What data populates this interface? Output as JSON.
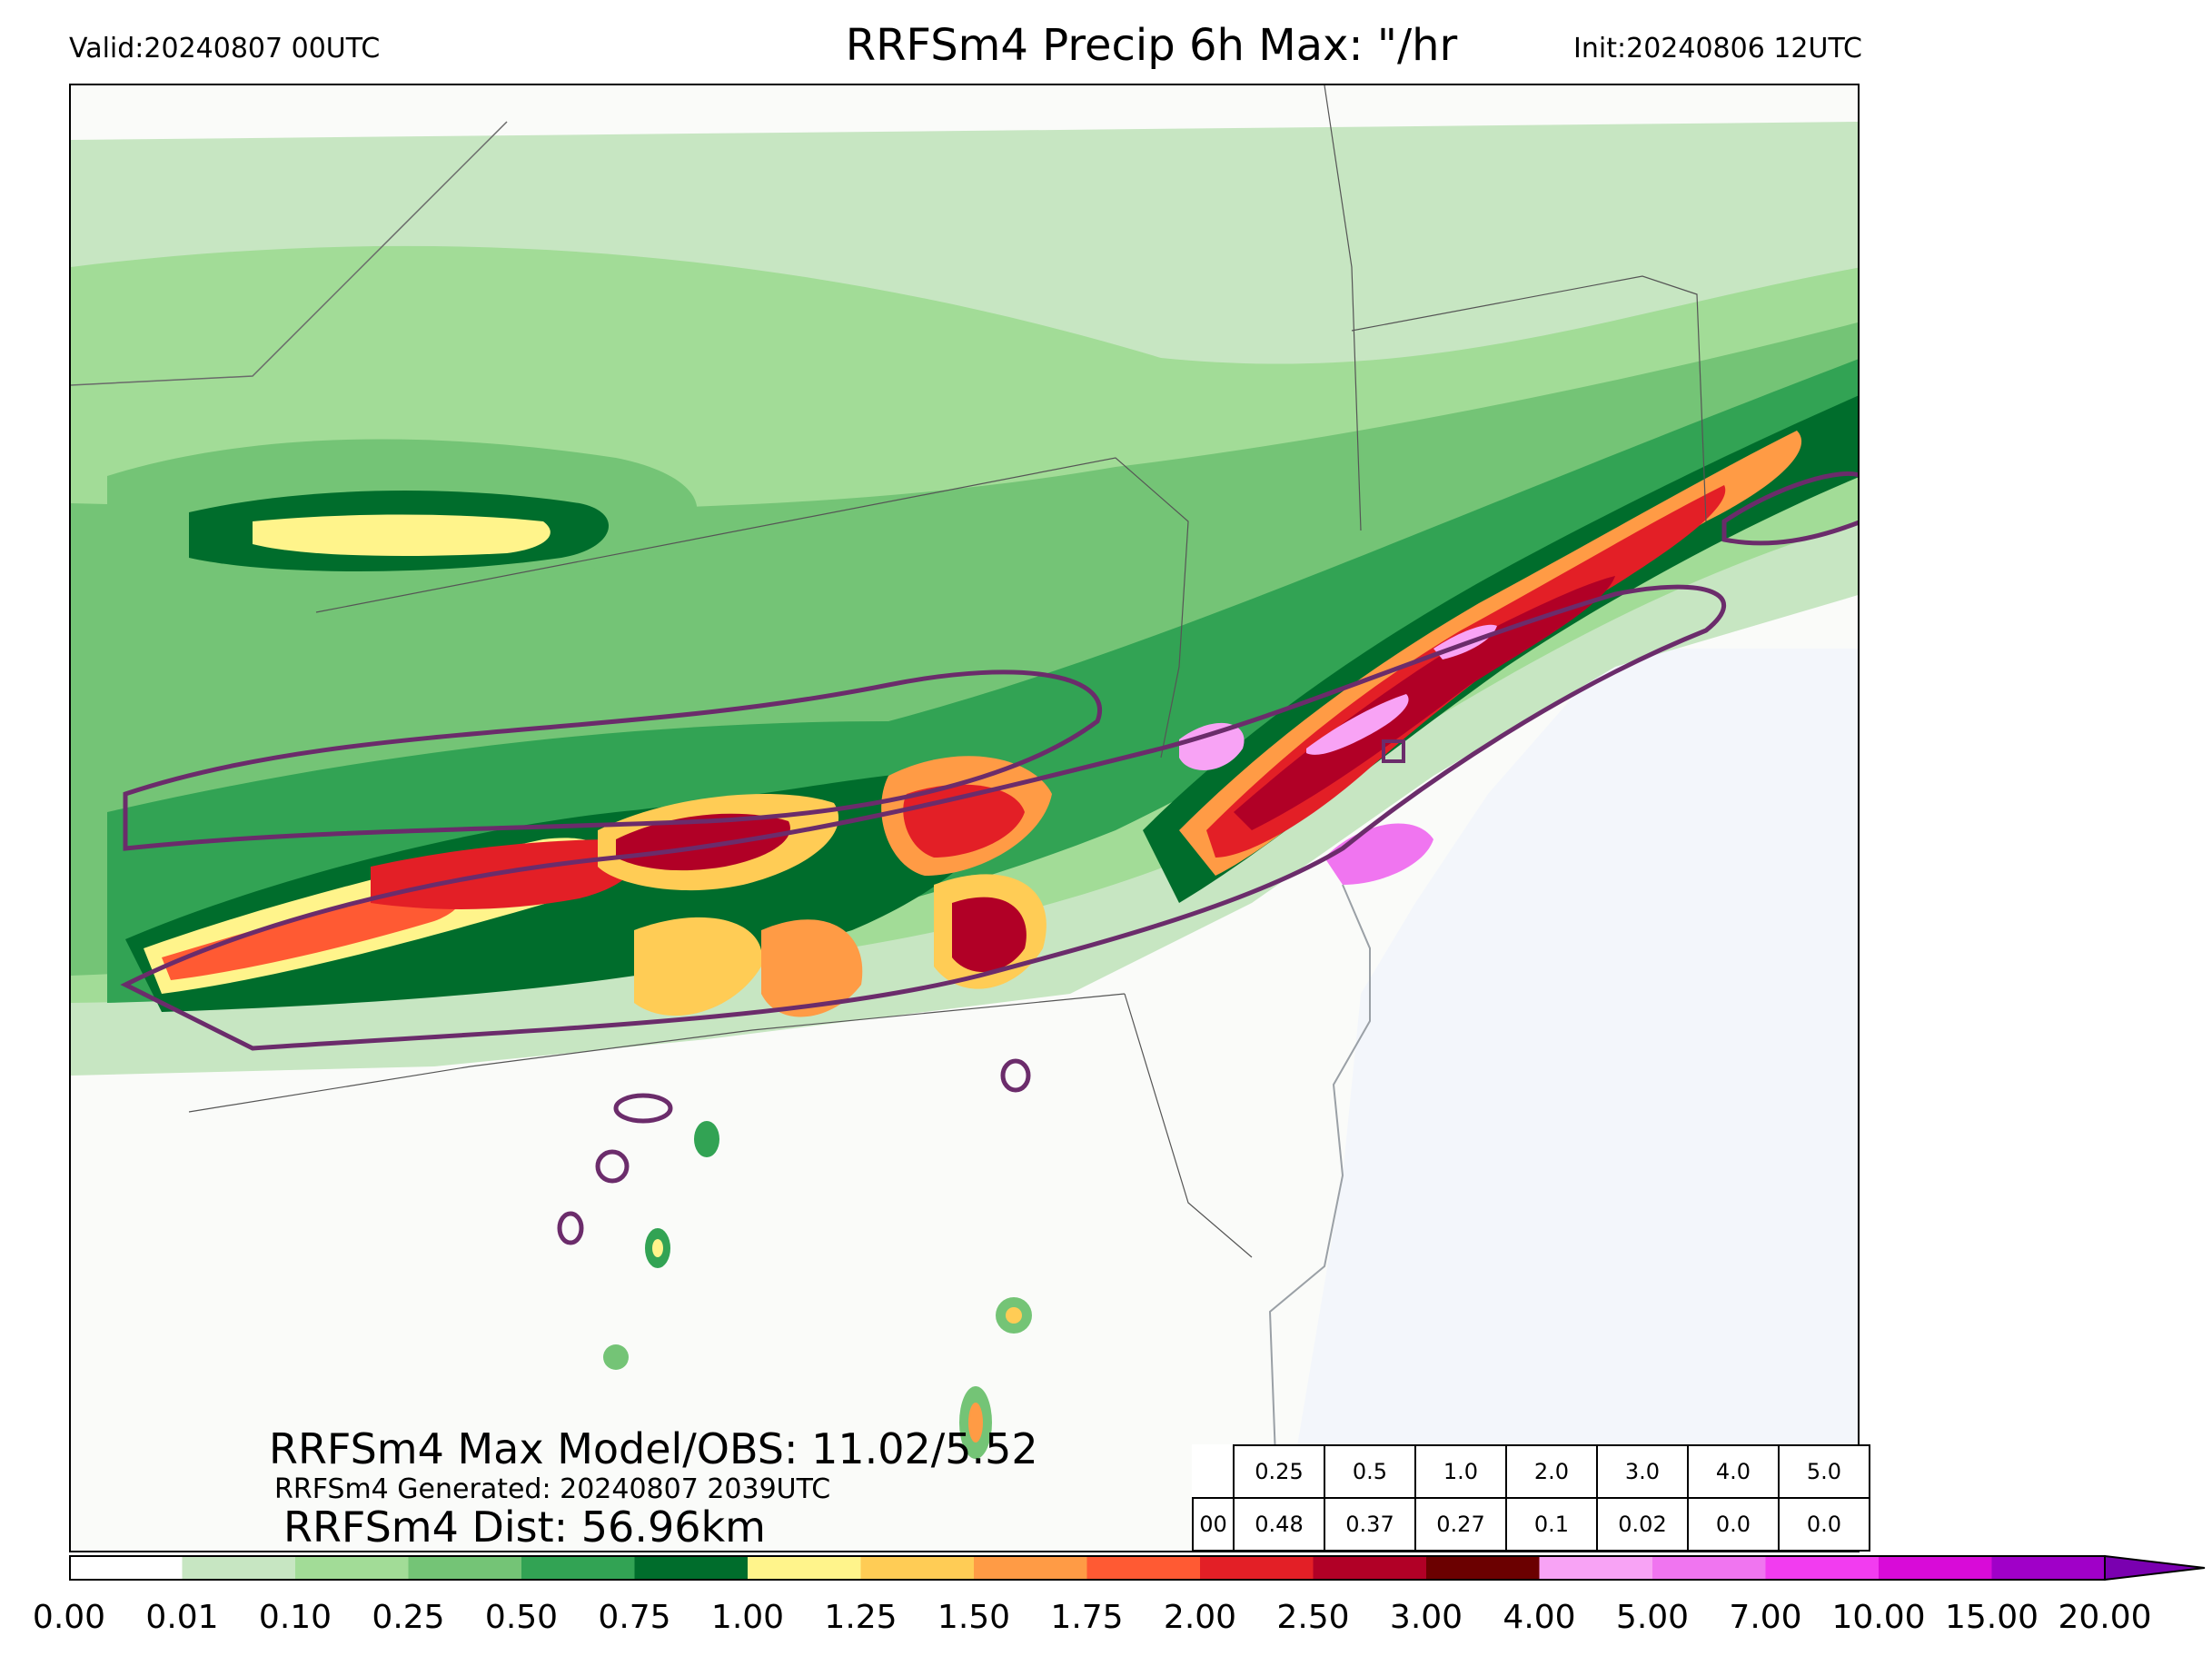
{
  "header": {
    "valid": "Valid:20240807 00UTC",
    "title": "RRFSm4 Precip 6h Max: \"/hr",
    "init": "Init:20240806 12UTC"
  },
  "annotations": {
    "max_line": "RRFSm4 Max Model/OBS: 11.02/5.52",
    "generated_line": "RRFSm4 Generated: 20240807 2039UTC",
    "dist_line": "RRFSm4 Dist: 56.96km"
  },
  "stats_table": {
    "thresholds": [
      "0.25",
      "0.5",
      "1.0",
      "2.0",
      "3.0",
      "4.0",
      "5.0"
    ],
    "row_label": "00",
    "values": [
      "0.48",
      "0.37",
      "0.27",
      "0.1",
      "0.02",
      "0.0",
      "0.0"
    ]
  },
  "colorbar": {
    "levels": [
      "0.00",
      "0.01",
      "0.10",
      "0.25",
      "0.50",
      "0.75",
      "1.00",
      "1.25",
      "1.50",
      "1.75",
      "2.00",
      "2.50",
      "3.00",
      "4.00",
      "5.00",
      "7.00",
      "10.00",
      "15.00",
      "20.00"
    ],
    "colors": [
      "#ffffff",
      "#c7e6c2",
      "#a2dc97",
      "#74c476",
      "#32a354",
      "#006d2c",
      "#fff48b",
      "#ffcc55",
      "#ff9b45",
      "#ff5a33",
      "#e31f26",
      "#b10026",
      "#6b0000",
      "#f8a3f5",
      "#f075f0",
      "#f23cf0",
      "#d80bd8",
      "#a000c8"
    ],
    "extend_color": "#7a00b0"
  },
  "chart_data": {
    "type": "heatmap",
    "title": "RRFSm4 Precip 6h Max: \"/hr",
    "colorbar_levels": [
      0.0,
      0.01,
      0.1,
      0.25,
      0.5,
      0.75,
      1.0,
      1.25,
      1.5,
      1.75,
      2.0,
      2.5,
      3.0,
      4.0,
      5.0,
      7.0,
      10.0,
      15.0,
      20.0
    ],
    "colorbar_extend": "max",
    "model_max": 11.02,
    "obs_max": 5.52,
    "distance_km": 56.96
  }
}
